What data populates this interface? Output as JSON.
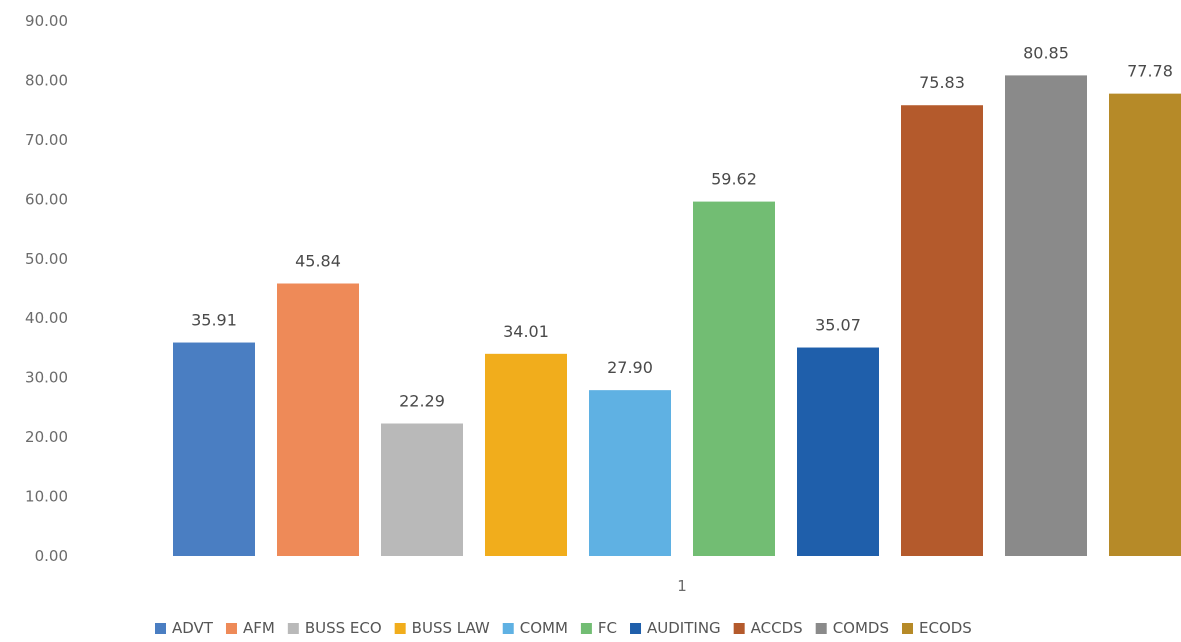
{
  "chart_data": {
    "type": "bar",
    "categories": [
      "1"
    ],
    "series": [
      {
        "name": "ADVT",
        "values": [
          35.91
        ],
        "color": "#4a7ec2"
      },
      {
        "name": "AFM",
        "values": [
          45.84
        ],
        "color": "#ee8a58"
      },
      {
        "name": "BUSS ECO",
        "values": [
          22.29
        ],
        "color": "#b9b9b9"
      },
      {
        "name": "BUSS LAW",
        "values": [
          34.01
        ],
        "color": "#f1ad1c"
      },
      {
        "name": "COMM",
        "values": [
          27.9
        ],
        "color": "#5fb1e3"
      },
      {
        "name": "FC",
        "values": [
          59.62
        ],
        "color": "#72bd73"
      },
      {
        "name": "AUDITING",
        "values": [
          35.07
        ],
        "color": "#1f5fab"
      },
      {
        "name": "ACCDS",
        "values": [
          75.83
        ],
        "color": "#b45a2c"
      },
      {
        "name": "COMDS",
        "values": [
          80.85
        ],
        "color": "#8a8a8a"
      },
      {
        "name": "ECODS",
        "values": [
          77.78
        ],
        "color": "#b68a28"
      }
    ],
    "data_labels": [
      "35.91",
      "45.84",
      "22.29",
      "34.01",
      "27.90",
      "59.62",
      "35.07",
      "75.83",
      "80.85",
      "77.78"
    ],
    "y_tick_labels": [
      "0.00",
      "10.00",
      "20.00",
      "30.00",
      "40.00",
      "50.00",
      "60.00",
      "70.00",
      "80.00",
      "90.00"
    ],
    "ylim": [
      0,
      90
    ],
    "title": "",
    "xlabel": "",
    "ylabel": "",
    "grid": false,
    "legend_position": "bottom"
  }
}
